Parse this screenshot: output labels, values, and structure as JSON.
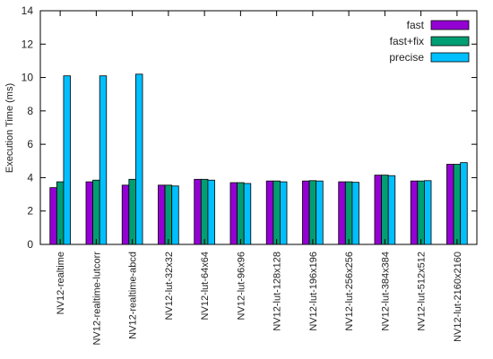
{
  "chart_data": {
    "type": "bar",
    "ylabel": "Execution Time (ms)",
    "xlabel": "",
    "title": "",
    "ylim": [
      0,
      14
    ],
    "yticks": [
      0,
      2,
      4,
      6,
      8,
      10,
      12,
      14
    ],
    "grid": false,
    "legend_position": "top-right",
    "categories": [
      "NV12-realtime",
      "NV12-realtime-lutcorr",
      "NV12-realtime-abcd",
      "NV12-lut-32x32",
      "NV12-lut-64x64",
      "NV12-lut-96x96",
      "NV12-lut-128x128",
      "NV12-lut-196x196",
      "NV12-lut-256x256",
      "NV12-lut-384x384",
      "NV12-lut-512x512",
      "NV12-lut-2160x2160"
    ],
    "series": [
      {
        "name": "fast",
        "color": "#9400d3",
        "values": [
          3.4,
          3.75,
          3.55,
          3.55,
          3.9,
          3.7,
          3.8,
          3.8,
          3.75,
          4.15,
          3.8,
          4.8
        ]
      },
      {
        "name": "fast+fix",
        "color": "#009e73",
        "values": [
          3.75,
          3.85,
          3.9,
          3.55,
          3.9,
          3.7,
          3.8,
          3.82,
          3.75,
          4.15,
          3.8,
          4.8
        ]
      },
      {
        "name": "precise",
        "color": "#00bfff",
        "values": [
          10.1,
          10.1,
          10.2,
          3.5,
          3.85,
          3.65,
          3.75,
          3.8,
          3.72,
          4.12,
          3.82,
          4.9
        ]
      }
    ]
  }
}
